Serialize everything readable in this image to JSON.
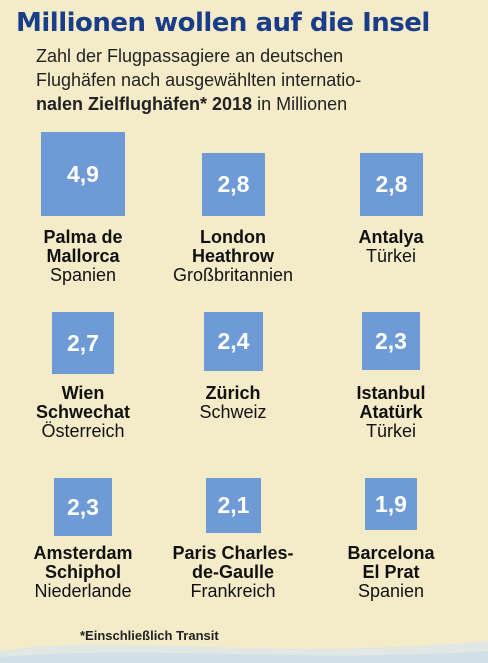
{
  "title": "Millionen wollen auf die Insel",
  "subtitle_line1": "Zahl der Flugpassagiere an deutschen",
  "subtitle_line2": "Flughäfen nach ausgewählten internatio-",
  "subtitle_line3_bold": "nalen Zielflughäfen* 2018",
  "subtitle_line3_rest": " in Millionen",
  "footnote": "*Einschließlich Transit",
  "colors": {
    "box": "#6e9bd6",
    "title": "#1a3d8a",
    "background": "#f4ecc9"
  },
  "chart_data": {
    "type": "bar",
    "title": "Millionen wollen auf die Insel",
    "ylabel": "in Millionen",
    "categories": [
      "Palma de Mallorca",
      "London Heathrow",
      "Antalya",
      "Wien Schwechat",
      "Zürich",
      "Istanbul Atatürk",
      "Amsterdam Schiphol",
      "Paris Charles-de-Gaulle",
      "Barcelona El Prat"
    ],
    "values": [
      4.9,
      2.8,
      2.8,
      2.7,
      2.4,
      2.3,
      2.3,
      2.1,
      1.9
    ],
    "items": [
      {
        "value_label": "4,9",
        "value": 4.9,
        "name1": "Palma de",
        "name2": "Mallorca",
        "country": "Spanien"
      },
      {
        "value_label": "2,8",
        "value": 2.8,
        "name1": "London",
        "name2": "Heathrow",
        "country": "Großbritannien"
      },
      {
        "value_label": "2,8",
        "value": 2.8,
        "name1": "Antalya",
        "name2": "",
        "country": "Türkei"
      },
      {
        "value_label": "2,7",
        "value": 2.7,
        "name1": "Wien",
        "name2": "Schwechat",
        "country": "Österreich"
      },
      {
        "value_label": "2,4",
        "value": 2.4,
        "name1": "Zürich",
        "name2": "",
        "country": "Schweiz"
      },
      {
        "value_label": "2,3",
        "value": 2.3,
        "name1": "Istanbul",
        "name2": "Atatürk",
        "country": "Türkei"
      },
      {
        "value_label": "2,3",
        "value": 2.3,
        "name1": "Amsterdam",
        "name2": "Schiphol",
        "country": "Niederlande"
      },
      {
        "value_label": "2,1",
        "value": 2.1,
        "name1": "Paris Charles-",
        "name2": "de-Gaulle",
        "country": "Frankreich"
      },
      {
        "value_label": "1,9",
        "value": 1.9,
        "name1": "Barcelona",
        "name2": "El Prat",
        "country": "Spanien"
      }
    ]
  }
}
